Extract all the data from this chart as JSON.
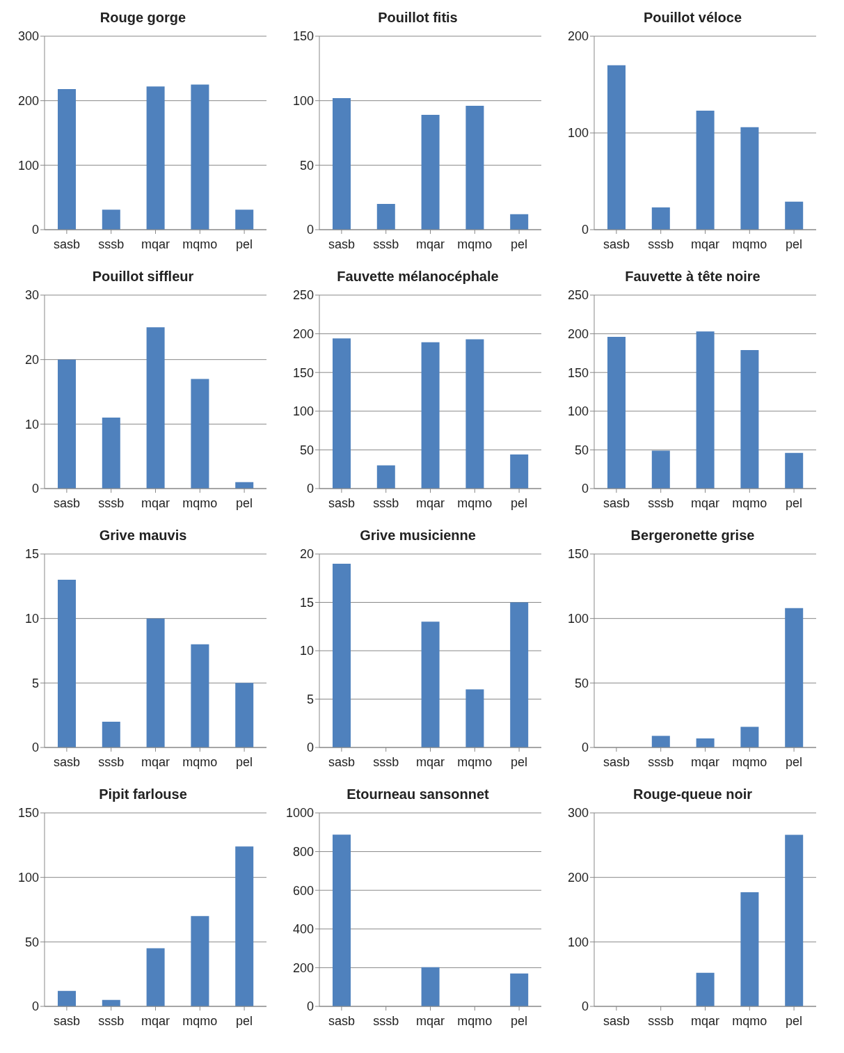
{
  "chart_data": [
    {
      "type": "bar",
      "title": "Rouge gorge",
      "categories": [
        "sasb",
        "sssb",
        "mqar",
        "mqmo",
        "pel"
      ],
      "values": [
        218,
        31,
        222,
        225,
        31
      ],
      "color": "#4f81bd",
      "ylim": [
        0,
        300
      ],
      "yticks": [
        0,
        100,
        200,
        300
      ],
      "grid": "y"
    },
    {
      "type": "bar",
      "title": "Pouillot fitis",
      "categories": [
        "sasb",
        "sssb",
        "mqar",
        "mqmo",
        "pel"
      ],
      "values": [
        102,
        20,
        89,
        96,
        12
      ],
      "color": "#4f81bd",
      "ylim": [
        0,
        150
      ],
      "yticks": [
        0,
        50,
        100,
        150
      ],
      "grid": "y"
    },
    {
      "type": "bar",
      "title": "Pouillot véloce",
      "categories": [
        "sasb",
        "sssb",
        "mqar",
        "mqmo",
        "pel"
      ],
      "values": [
        170,
        23,
        123,
        106,
        29
      ],
      "color": "#4f81bd",
      "ylim": [
        0,
        200
      ],
      "yticks": [
        0,
        100,
        200
      ],
      "grid": "y"
    },
    {
      "type": "bar",
      "title": "Pouillot siffleur",
      "categories": [
        "sasb",
        "sssb",
        "mqar",
        "mqmo",
        "pel"
      ],
      "values": [
        20,
        11,
        25,
        17,
        1
      ],
      "color": "#4f81bd",
      "ylim": [
        0,
        30
      ],
      "yticks": [
        0,
        10,
        20,
        30
      ],
      "grid": "y"
    },
    {
      "type": "bar",
      "title": "Fauvette mélanocéphale",
      "categories": [
        "sasb",
        "sssb",
        "mqar",
        "mqmo",
        "pel"
      ],
      "values": [
        194,
        30,
        189,
        193,
        44
      ],
      "color": "#4f81bd",
      "ylim": [
        0,
        250
      ],
      "yticks": [
        0,
        50,
        100,
        150,
        200,
        250
      ],
      "grid": "y"
    },
    {
      "type": "bar",
      "title": "Fauvette à tête noire",
      "categories": [
        "sasb",
        "sssb",
        "mqar",
        "mqmo",
        "pel"
      ],
      "values": [
        196,
        49,
        203,
        179,
        46
      ],
      "color": "#4f81bd",
      "ylim": [
        0,
        250
      ],
      "yticks": [
        0,
        50,
        100,
        150,
        200,
        250
      ],
      "grid": "y"
    },
    {
      "type": "bar",
      "title": "Grive mauvis",
      "categories": [
        "sasb",
        "sssb",
        "mqar",
        "mqmo",
        "pel"
      ],
      "values": [
        13,
        2,
        10,
        8,
        5
      ],
      "color": "#4f81bd",
      "ylim": [
        0,
        15
      ],
      "yticks": [
        0,
        5,
        10,
        15
      ],
      "grid": "y"
    },
    {
      "type": "bar",
      "title": "Grive musicienne",
      "categories": [
        "sasb",
        "sssb",
        "mqar",
        "mqmo",
        "pel"
      ],
      "values": [
        19,
        0,
        13,
        6,
        15
      ],
      "color": "#4f81bd",
      "ylim": [
        0,
        20
      ],
      "yticks": [
        0,
        5,
        10,
        15,
        20
      ],
      "grid": "y"
    },
    {
      "type": "bar",
      "title": "Bergeronette grise",
      "categories": [
        "sasb",
        "sssb",
        "mqar",
        "mqmo",
        "pel"
      ],
      "values": [
        0,
        9,
        7,
        16,
        108
      ],
      "color": "#4f81bd",
      "ylim": [
        0,
        150
      ],
      "yticks": [
        0,
        50,
        100,
        150
      ],
      "grid": "y"
    },
    {
      "type": "bar",
      "title": "Pipit farlouse",
      "categories": [
        "sasb",
        "sssb",
        "mqar",
        "mqmo",
        "pel"
      ],
      "values": [
        12,
        5,
        45,
        70,
        124
      ],
      "color": "#4f81bd",
      "ylim": [
        0,
        150
      ],
      "yticks": [
        0,
        50,
        100,
        150
      ],
      "grid": "y"
    },
    {
      "type": "bar",
      "title": "Etourneau sansonnet",
      "categories": [
        "sasb",
        "sssb",
        "mqar",
        "mqmo",
        "pel"
      ],
      "values": [
        888,
        0,
        202,
        0,
        170
      ],
      "color": "#4f81bd",
      "ylim": [
        0,
        1000
      ],
      "yticks": [
        0,
        200,
        400,
        600,
        800,
        1000
      ],
      "grid": "y"
    },
    {
      "type": "bar",
      "title": "Rouge-queue noir",
      "categories": [
        "sasb",
        "sssb",
        "mqar",
        "mqmo",
        "pel"
      ],
      "values": [
        0,
        0,
        52,
        177,
        266
      ],
      "color": "#4f81bd",
      "ylim": [
        0,
        300
      ],
      "yticks": [
        0,
        100,
        200,
        300
      ],
      "grid": "y"
    }
  ]
}
